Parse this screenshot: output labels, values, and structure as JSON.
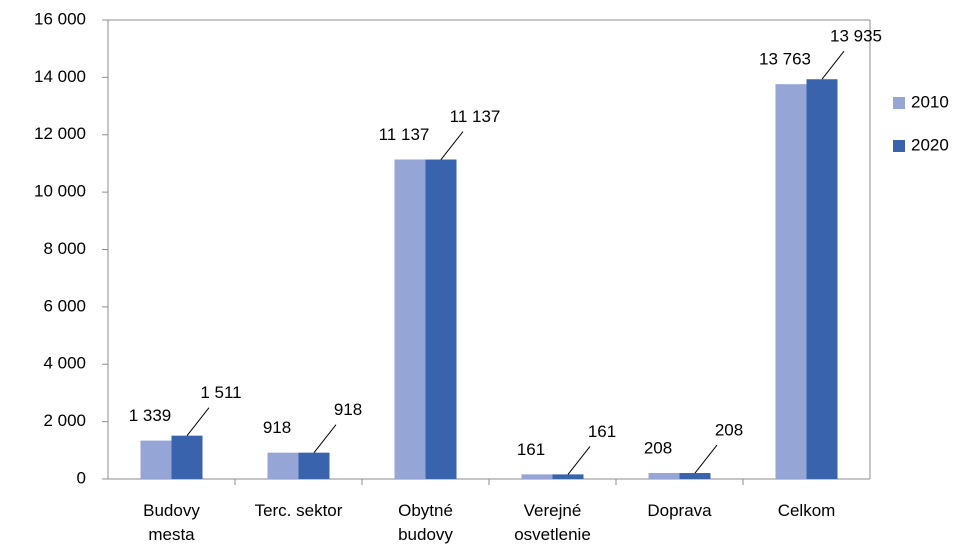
{
  "chart_data": {
    "type": "bar",
    "categories": [
      "Budovy mesta",
      "Terc. sektor",
      "Obytné budovy",
      "Verejné osvetlenie",
      "Doprava",
      "Celkom"
    ],
    "series": [
      {
        "name": "2010",
        "color": "#95a6d6",
        "values": [
          1339,
          918,
          11137,
          161,
          208,
          13763
        ],
        "value_labels": [
          "1 339",
          "918",
          "11 137",
          "161",
          "208",
          "13 763"
        ]
      },
      {
        "name": "2020",
        "color": "#3a63ae",
        "values": [
          1511,
          918,
          11137,
          161,
          208,
          13935
        ],
        "value_labels": [
          "1 511",
          "918",
          "11 137",
          "161",
          "208",
          "13 935"
        ]
      }
    ],
    "ylim": [
      0,
      16000
    ],
    "yticks": [
      0,
      {
        "value": 2000,
        "label": "2 000"
      },
      {
        "value": 4000,
        "label": "4 000"
      },
      {
        "value": 6000,
        "label": "6 000"
      },
      {
        "value": 8000,
        "label": "8 000"
      },
      {
        "value": 10000,
        "label": "10 000"
      },
      {
        "value": 12000,
        "label": "12 000"
      },
      {
        "value": 14000,
        "label": "14 000"
      },
      {
        "value": 16000,
        "label": "16 000"
      }
    ],
    "grid": false,
    "legend": "right"
  }
}
